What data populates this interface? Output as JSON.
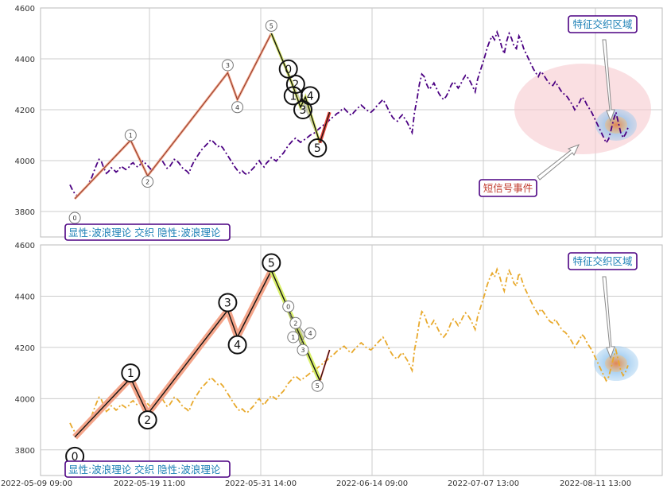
{
  "chart_data": {
    "type": "line",
    "x_ticks": [
      "2022-05-09 09:00",
      "2022-05-19 11:00",
      "2022-05-31 14:00",
      "2022-06-14 09:00",
      "2022-07-07 13:00",
      "2022-08-11 13:00"
    ],
    "ylim": [
      3700,
      4600
    ],
    "y_ticks": [
      3800,
      4000,
      4200,
      4400,
      4600
    ],
    "grid": true,
    "colors": {
      "top_price": "#4b0082",
      "bottom_price": "#e8a92c",
      "wave_line": "#cc6644",
      "wave_halo": "#f4a58a",
      "ellipse": "#f6c9cf",
      "zone_blue": "#9ccbf0",
      "zone_orange": "#f0b070",
      "label_text": "#1a7fb5",
      "label_border": "#4b0082",
      "signal_text": "#c0392b"
    },
    "wave_points": [
      {
        "x": 2,
        "y": 3850,
        "label": "0"
      },
      {
        "x": 25,
        "y": 4080,
        "label": "1"
      },
      {
        "x": 32,
        "y": 3940,
        "label": "2"
      },
      {
        "x": 65,
        "y": 4345,
        "label": "3"
      },
      {
        "x": 69,
        "y": 4240,
        "label": "4"
      },
      {
        "x": 83,
        "y": 4500,
        "label": "5"
      }
    ],
    "top_markers": [
      {
        "x": 2,
        "y": 3775,
        "label": "0"
      },
      {
        "x": 25,
        "y": 4100,
        "label": "1"
      },
      {
        "x": 32,
        "y": 3917,
        "label": "2"
      },
      {
        "x": 65,
        "y": 4375,
        "label": "3"
      },
      {
        "x": 69,
        "y": 4210,
        "label": "4"
      },
      {
        "x": 83,
        "y": 4530,
        "label": "5"
      }
    ],
    "bottom_markers": [
      {
        "x": 2,
        "y": 3775,
        "label": "0"
      },
      {
        "x": 25,
        "y": 4100,
        "label": "1"
      },
      {
        "x": 32,
        "y": 3917,
        "label": "2"
      },
      {
        "x": 65,
        "y": 4375,
        "label": "3"
      },
      {
        "x": 69,
        "y": 4210,
        "label": "4"
      },
      {
        "x": 83,
        "y": 4530,
        "label": "5"
      }
    ],
    "sub_wave_points": [
      {
        "x": 83,
        "y": 4500
      },
      {
        "x": 90,
        "y": 4340
      },
      {
        "x": 92,
        "y": 4290
      },
      {
        "x": 95,
        "y": 4210
      },
      {
        "x": 97,
        "y": 4250
      },
      {
        "x": 103,
        "y": 4070
      }
    ],
    "top_sub_markers": [
      {
        "x": 90,
        "y": 4360,
        "label": "0"
      },
      {
        "x": 92,
        "y": 4255,
        "label": "1"
      },
      {
        "x": 93,
        "y": 4300,
        "label": "2"
      },
      {
        "x": 96,
        "y": 4200,
        "label": "3"
      },
      {
        "x": 99,
        "y": 4255,
        "label": "4"
      },
      {
        "x": 102,
        "y": 4050,
        "label": "5"
      }
    ],
    "bottom_sub_markers": [
      {
        "x": 90,
        "y": 4360,
        "label": "0"
      },
      {
        "x": 92,
        "y": 4240,
        "label": "1"
      },
      {
        "x": 93,
        "y": 4295,
        "label": "2"
      },
      {
        "x": 96,
        "y": 4190,
        "label": "3"
      },
      {
        "x": 99,
        "y": 4255,
        "label": "4"
      },
      {
        "x": 102,
        "y": 4050,
        "label": "5"
      }
    ],
    "tail_line": [
      {
        "x": 103,
        "y": 4070
      },
      {
        "x": 107,
        "y": 4190
      }
    ],
    "price": [
      3905,
      3885,
      3870,
      3862,
      3870,
      3882,
      3890,
      3900,
      3915,
      3935,
      3960,
      3985,
      4005,
      3995,
      3970,
      3950,
      3958,
      3972,
      3965,
      3955,
      3962,
      3978,
      3972,
      3965,
      3970,
      3985,
      3992,
      3980,
      3975,
      3985,
      3998,
      3990,
      3980,
      3970,
      3960,
      3975,
      3990,
      4005,
      4000,
      3985,
      3970,
      3975,
      3990,
      4005,
      4000,
      3990,
      3975,
      3965,
      3960,
      3950,
      3975,
      3995,
      4010,
      4025,
      4040,
      4050,
      4060,
      4070,
      4082,
      4075,
      4065,
      4055,
      4060,
      4050,
      4035,
      4020,
      4005,
      3990,
      3975,
      3962,
      3952,
      3960,
      3950,
      3945,
      3955,
      3965,
      3975,
      3990,
      4000,
      3985,
      3975,
      3990,
      4000,
      4012,
      4005,
      3998,
      4010,
      4020,
      4030,
      4045,
      4060,
      4070,
      4082,
      4088,
      4080,
      4072,
      4078,
      4085,
      4092,
      4100,
      4105,
      4110,
      4120,
      4128,
      4135,
      4145,
      4150,
      4160,
      4168,
      4175,
      4185,
      4190,
      4200,
      4205,
      4195,
      4185,
      4178,
      4190,
      4200,
      4210,
      4218,
      4210,
      4200,
      4195,
      4190,
      4198,
      4210,
      4220,
      4230,
      4240,
      4225,
      4205,
      4185,
      4170,
      4160,
      4155,
      4170,
      4180,
      4165,
      4150,
      4130,
      4110,
      4190,
      4240,
      4300,
      4340,
      4330,
      4300,
      4280,
      4290,
      4305,
      4285,
      4265,
      4250,
      4240,
      4252,
      4270,
      4295,
      4310,
      4300,
      4285,
      4300,
      4320,
      4335,
      4325,
      4310,
      4290,
      4270,
      4320,
      4350,
      4380,
      4410,
      4445,
      4470,
      4490,
      4475,
      4505,
      4480,
      4445,
      4420,
      4470,
      4500,
      4480,
      4450,
      4440,
      4490,
      4470,
      4440,
      4420,
      4400,
      4380,
      4360,
      4345,
      4330,
      4350,
      4340,
      4325,
      4310,
      4300,
      4295,
      4310,
      4295,
      4280,
      4265,
      4260,
      4250,
      4235,
      4220,
      4200,
      4215,
      4230,
      4250,
      4240,
      4220,
      4205,
      4190,
      4170,
      4150,
      4130,
      4110,
      4090,
      4070,
      4085,
      4120,
      4160,
      4190,
      4150,
      4110,
      4090,
      4105,
      4130
    ]
  },
  "panels": {
    "top": {
      "legend": "显性:波浪理论 交织 隐性:波浪理论",
      "zone_label": "特征交织区域",
      "signal_label": "短信号事件"
    },
    "bottom": {
      "legend": "显性:波浪理论 交织 隐性:波浪理论",
      "zone_label": "特征交织区域"
    }
  }
}
